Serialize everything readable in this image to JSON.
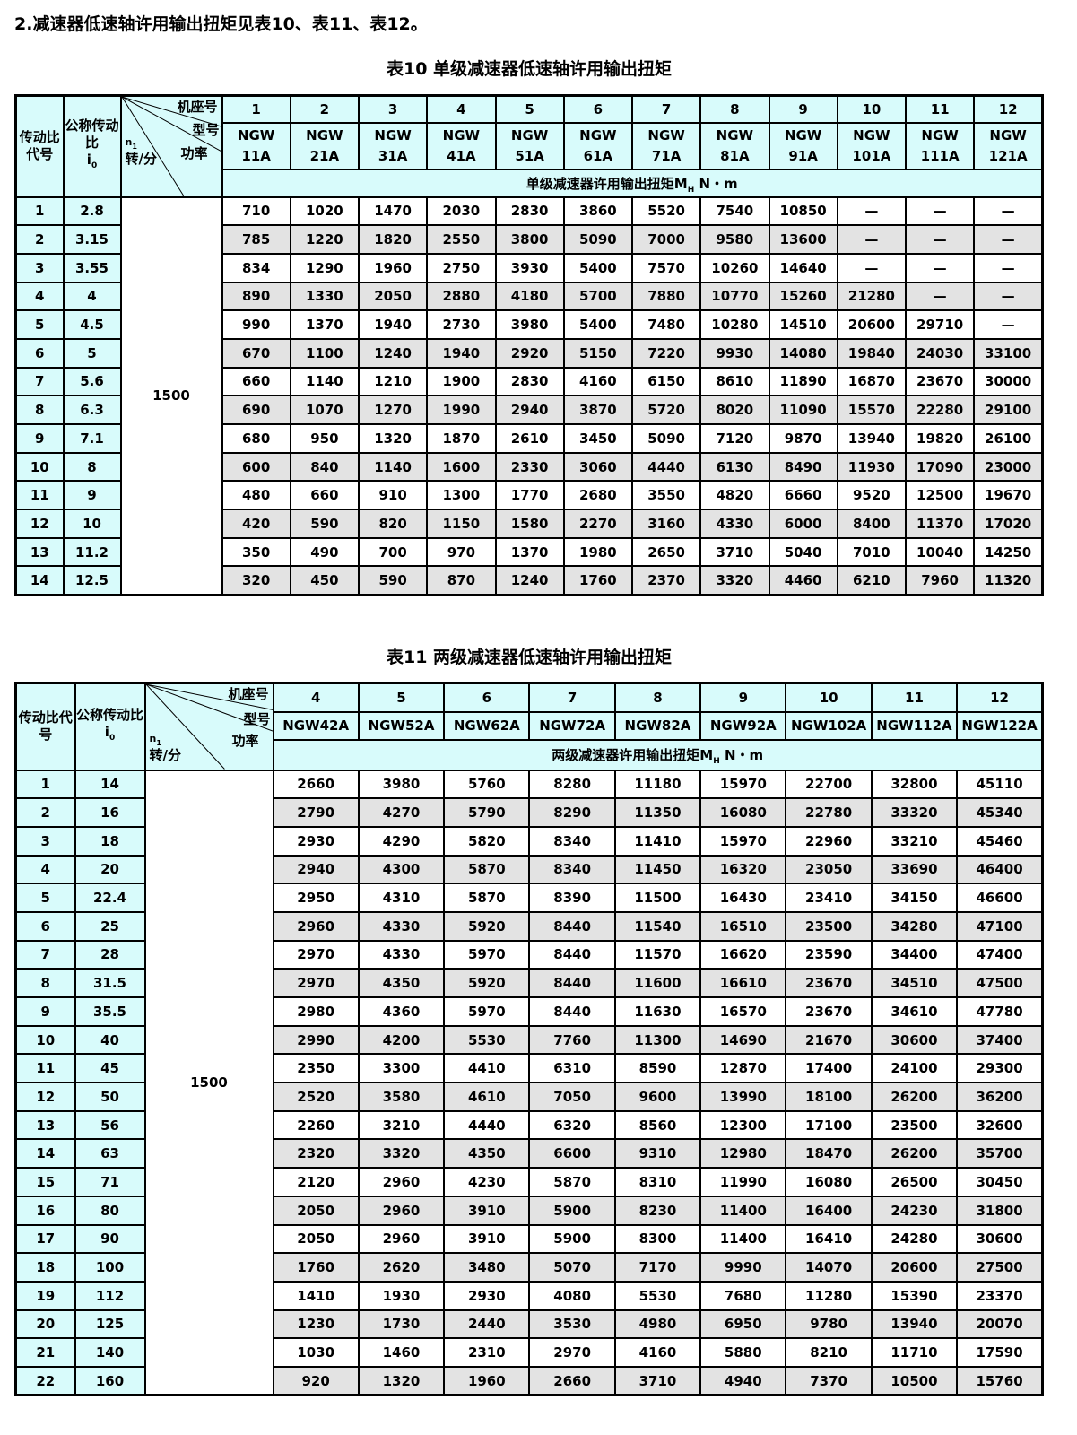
{
  "intro": "2.减速器低速轴许用输出扭矩见表10、表11、表12。",
  "colors": {
    "header_bg": "#d8fbfb",
    "stripe_gray": "#e3e3e3"
  },
  "table10": {
    "title": "表10  单级减速器低速轴许用输出扭矩",
    "col_ratio_code": "传动比代号",
    "col_ratio": "公称传动比",
    "col_ratio_sub": "i",
    "col_ratio_subscript": "0",
    "diag_frame": "机座号",
    "diag_model": "型号",
    "diag_power": "功率",
    "diag_speed": "n",
    "diag_speed_sub": "1",
    "diag_speed_unit": "转/分",
    "frames": [
      "1",
      "2",
      "3",
      "4",
      "5",
      "6",
      "7",
      "8",
      "9",
      "10",
      "11",
      "12"
    ],
    "models": [
      "NGW 11A",
      "NGW 21A",
      "NGW 31A",
      "NGW 41A",
      "NGW 51A",
      "NGW 61A",
      "NGW 71A",
      "NGW 81A",
      "NGW 91A",
      "NGW 101A",
      "NGW 111A",
      "NGW 121A"
    ],
    "torque_label": "单级减速器许用输出扭矩M",
    "torque_label_sub": "H",
    "torque_unit": " N・m",
    "speed": "1500",
    "rows": [
      {
        "code": "1",
        "ratio": "2.8",
        "values": [
          "710",
          "1020",
          "1470",
          "2030",
          "2830",
          "3860",
          "5520",
          "7540",
          "10850",
          "—",
          "—",
          "—"
        ]
      },
      {
        "code": "2",
        "ratio": "3.15",
        "values": [
          "785",
          "1220",
          "1820",
          "2550",
          "3800",
          "5090",
          "7000",
          "9580",
          "13600",
          "—",
          "—",
          "—"
        ]
      },
      {
        "code": "3",
        "ratio": "3.55",
        "values": [
          "834",
          "1290",
          "1960",
          "2750",
          "3930",
          "5400",
          "7570",
          "10260",
          "14640",
          "—",
          "—",
          "—"
        ]
      },
      {
        "code": "4",
        "ratio": "4",
        "values": [
          "890",
          "1330",
          "2050",
          "2880",
          "4180",
          "5700",
          "7880",
          "10770",
          "15260",
          "21280",
          "—",
          "—"
        ]
      },
      {
        "code": "5",
        "ratio": "4.5",
        "values": [
          "990",
          "1370",
          "1940",
          "2730",
          "3980",
          "5400",
          "7480",
          "10280",
          "14510",
          "20600",
          "29710",
          "—"
        ]
      },
      {
        "code": "6",
        "ratio": "5",
        "values": [
          "670",
          "1100",
          "1240",
          "1940",
          "2920",
          "5150",
          "7220",
          "9930",
          "14080",
          "19840",
          "24030",
          "33100"
        ]
      },
      {
        "code": "7",
        "ratio": "5.6",
        "values": [
          "660",
          "1140",
          "1210",
          "1900",
          "2830",
          "4160",
          "6150",
          "8610",
          "11890",
          "16870",
          "23670",
          "30000"
        ]
      },
      {
        "code": "8",
        "ratio": "6.3",
        "values": [
          "690",
          "1070",
          "1270",
          "1990",
          "2940",
          "3870",
          "5720",
          "8020",
          "11090",
          "15570",
          "22280",
          "29100"
        ]
      },
      {
        "code": "9",
        "ratio": "7.1",
        "values": [
          "680",
          "950",
          "1320",
          "1870",
          "2610",
          "3450",
          "5090",
          "7120",
          "9870",
          "13940",
          "19820",
          "26100"
        ]
      },
      {
        "code": "10",
        "ratio": "8",
        "values": [
          "600",
          "840",
          "1140",
          "1600",
          "2330",
          "3060",
          "4440",
          "6130",
          "8490",
          "11930",
          "17090",
          "23000"
        ]
      },
      {
        "code": "11",
        "ratio": "9",
        "values": [
          "480",
          "660",
          "910",
          "1300",
          "1770",
          "2680",
          "3550",
          "4820",
          "6660",
          "9520",
          "12500",
          "19670"
        ]
      },
      {
        "code": "12",
        "ratio": "10",
        "values": [
          "420",
          "590",
          "820",
          "1150",
          "1580",
          "2270",
          "3160",
          "4330",
          "6000",
          "8400",
          "11370",
          "17020"
        ]
      },
      {
        "code": "13",
        "ratio": "11.2",
        "values": [
          "350",
          "490",
          "700",
          "970",
          "1370",
          "1980",
          "2650",
          "3710",
          "5040",
          "7010",
          "10040",
          "14250"
        ]
      },
      {
        "code": "14",
        "ratio": "12.5",
        "values": [
          "320",
          "450",
          "590",
          "870",
          "1240",
          "1760",
          "2370",
          "3320",
          "4460",
          "6210",
          "7960",
          "11320"
        ]
      }
    ]
  },
  "table11": {
    "title": "表11  两级减速器低速轴许用输出扭矩",
    "col_ratio_code": "传动比代号",
    "col_ratio": "公称传动比",
    "col_ratio_sub": "i",
    "col_ratio_subscript": "0",
    "diag_frame": "机座号",
    "diag_model": "型号",
    "diag_power": "功率",
    "diag_speed": "n",
    "diag_speed_sub": "1",
    "diag_speed_unit": "转/分",
    "frames": [
      "4",
      "5",
      "6",
      "7",
      "8",
      "9",
      "10",
      "11",
      "12"
    ],
    "models": [
      "NGW42A",
      "NGW52A",
      "NGW62A",
      "NGW72A",
      "NGW82A",
      "NGW92A",
      "NGW102A",
      "NGW112A",
      "NGW122A"
    ],
    "torque_label": "两级减速器许用输出扭矩M",
    "torque_label_sub": "H",
    "torque_unit": " N・m",
    "speed": "1500",
    "rows": [
      {
        "code": "1",
        "ratio": "14",
        "values": [
          "2660",
          "3980",
          "5760",
          "8280",
          "11180",
          "15970",
          "22700",
          "32800",
          "45110"
        ]
      },
      {
        "code": "2",
        "ratio": "16",
        "values": [
          "2790",
          "4270",
          "5790",
          "8290",
          "11350",
          "16080",
          "22780",
          "33320",
          "45340"
        ]
      },
      {
        "code": "3",
        "ratio": "18",
        "values": [
          "2930",
          "4290",
          "5820",
          "8340",
          "11410",
          "15970",
          "22960",
          "33210",
          "45460"
        ]
      },
      {
        "code": "4",
        "ratio": "20",
        "values": [
          "2940",
          "4300",
          "5870",
          "8340",
          "11450",
          "16320",
          "23050",
          "33690",
          "46400"
        ]
      },
      {
        "code": "5",
        "ratio": "22.4",
        "values": [
          "2950",
          "4310",
          "5870",
          "8390",
          "11500",
          "16430",
          "23410",
          "34150",
          "46600"
        ]
      },
      {
        "code": "6",
        "ratio": "25",
        "values": [
          "2960",
          "4330",
          "5920",
          "8440",
          "11540",
          "16510",
          "23500",
          "34280",
          "47100"
        ]
      },
      {
        "code": "7",
        "ratio": "28",
        "values": [
          "2970",
          "4330",
          "5970",
          "8440",
          "11570",
          "16620",
          "23590",
          "34400",
          "47400"
        ]
      },
      {
        "code": "8",
        "ratio": "31.5",
        "values": [
          "2970",
          "4350",
          "5920",
          "8440",
          "11600",
          "16610",
          "23670",
          "34510",
          "47500"
        ]
      },
      {
        "code": "9",
        "ratio": "35.5",
        "values": [
          "2980",
          "4360",
          "5970",
          "8440",
          "11630",
          "16570",
          "23670",
          "34610",
          "47780"
        ]
      },
      {
        "code": "10",
        "ratio": "40",
        "values": [
          "2990",
          "4200",
          "5530",
          "7760",
          "11300",
          "14690",
          "21670",
          "30600",
          "37400"
        ]
      },
      {
        "code": "11",
        "ratio": "45",
        "values": [
          "2350",
          "3300",
          "4410",
          "6310",
          "8590",
          "12870",
          "17400",
          "24100",
          "29300"
        ]
      },
      {
        "code": "12",
        "ratio": "50",
        "values": [
          "2520",
          "3580",
          "4610",
          "7050",
          "9600",
          "13990",
          "18100",
          "26200",
          "36200"
        ]
      },
      {
        "code": "13",
        "ratio": "56",
        "values": [
          "2260",
          "3210",
          "4440",
          "6320",
          "8560",
          "12300",
          "17100",
          "23500",
          "32600"
        ]
      },
      {
        "code": "14",
        "ratio": "63",
        "values": [
          "2320",
          "3320",
          "4350",
          "6600",
          "9310",
          "12980",
          "18470",
          "26200",
          "35700"
        ]
      },
      {
        "code": "15",
        "ratio": "71",
        "values": [
          "2120",
          "2960",
          "4230",
          "5870",
          "8310",
          "11990",
          "16080",
          "26500",
          "30450"
        ]
      },
      {
        "code": "16",
        "ratio": "80",
        "values": [
          "2050",
          "2960",
          "3910",
          "5900",
          "8230",
          "11400",
          "16400",
          "24230",
          "31800"
        ]
      },
      {
        "code": "17",
        "ratio": "90",
        "values": [
          "2050",
          "2960",
          "3910",
          "5900",
          "8300",
          "11400",
          "16410",
          "24280",
          "30600"
        ]
      },
      {
        "code": "18",
        "ratio": "100",
        "values": [
          "1760",
          "2620",
          "3480",
          "5070",
          "7170",
          "9990",
          "14070",
          "20600",
          "27500"
        ]
      },
      {
        "code": "19",
        "ratio": "112",
        "values": [
          "1410",
          "1930",
          "2930",
          "4080",
          "5530",
          "7680",
          "11280",
          "15390",
          "23370"
        ]
      },
      {
        "code": "20",
        "ratio": "125",
        "values": [
          "1230",
          "1730",
          "2440",
          "3530",
          "4980",
          "6950",
          "9780",
          "13940",
          "20070"
        ]
      },
      {
        "code": "21",
        "ratio": "140",
        "values": [
          "1030",
          "1460",
          "2310",
          "2970",
          "4160",
          "5880",
          "8210",
          "11710",
          "17590"
        ]
      },
      {
        "code": "22",
        "ratio": "160",
        "values": [
          "920",
          "1320",
          "1960",
          "2660",
          "3710",
          "4940",
          "7370",
          "10500",
          "15760"
        ]
      }
    ]
  }
}
